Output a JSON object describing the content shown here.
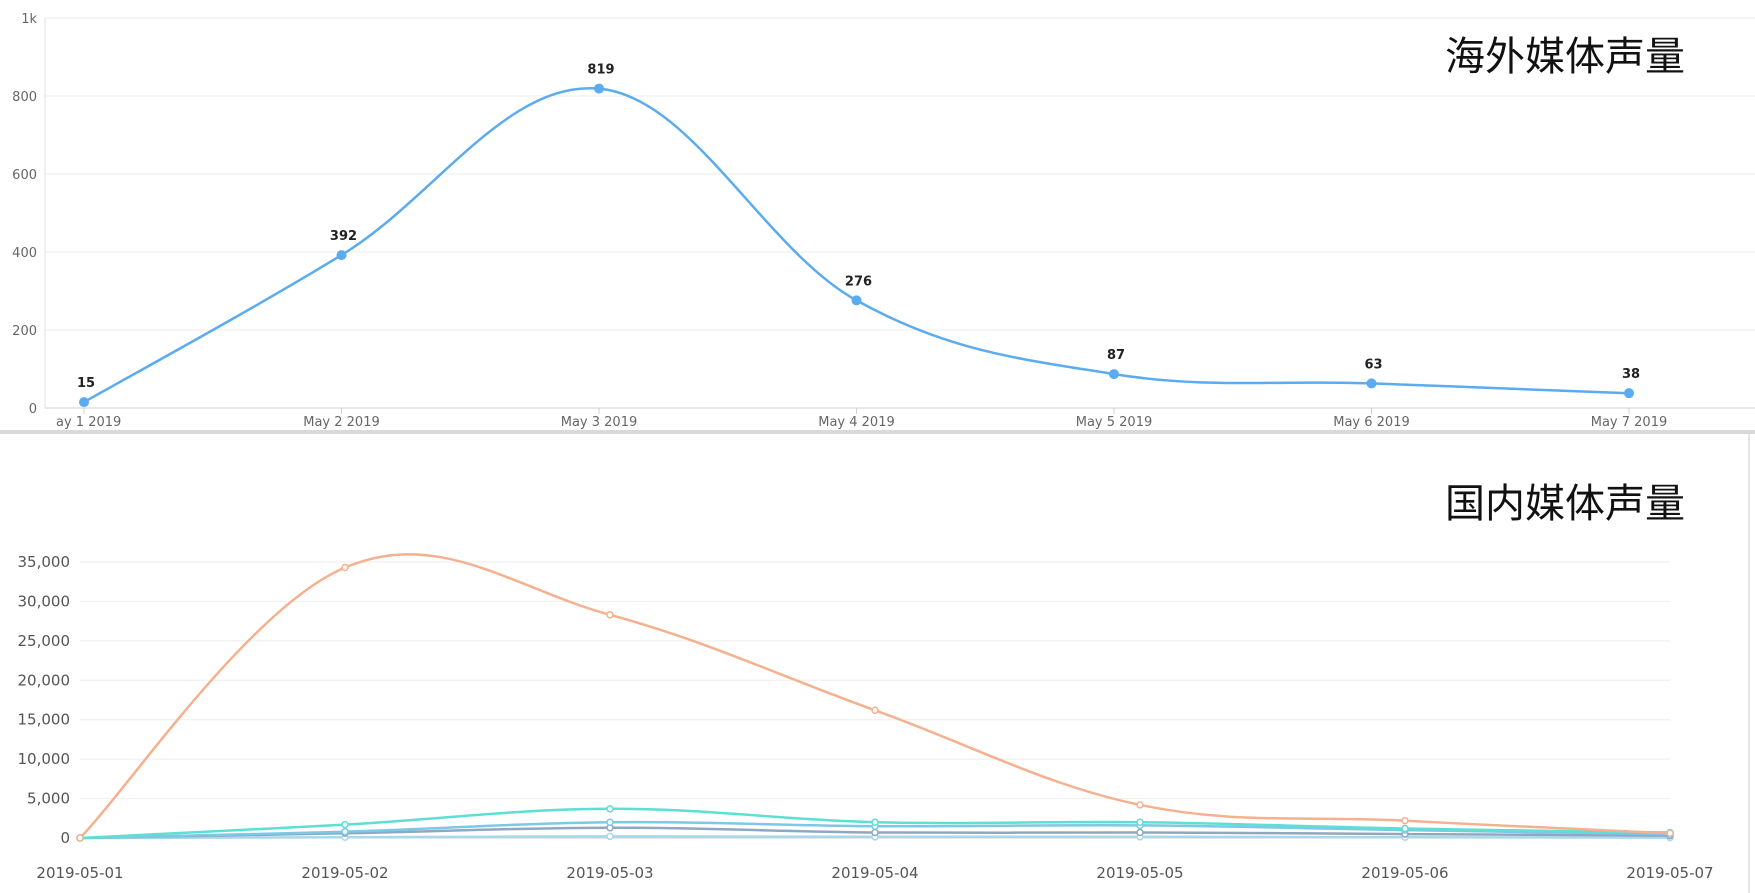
{
  "chart_data": [
    {
      "type": "line",
      "title": "海外媒体声量",
      "xlabel": "",
      "ylabel": "",
      "categories": [
        "ay 1 2019",
        "May 2 2019",
        "May 3 2019",
        "May 4 2019",
        "May 5 2019",
        "May 6 2019",
        "May 7 2019"
      ],
      "values": [
        15,
        392,
        819,
        276,
        87,
        63,
        38
      ],
      "data_labels": [
        "15",
        "392",
        "819",
        "276",
        "87",
        "63",
        "38"
      ],
      "ylim": [
        0,
        1000
      ],
      "yticks": [
        0,
        200,
        400,
        600,
        800,
        1000
      ],
      "ytick_labels": [
        "0",
        "200",
        "400",
        "600",
        "800",
        "1k"
      ],
      "grid": true,
      "color": "#5aabef"
    },
    {
      "type": "line",
      "title": "国内媒体声量",
      "xlabel": "",
      "ylabel": "",
      "categories": [
        "2019-05-01",
        "2019-05-02",
        "2019-05-03",
        "2019-05-04",
        "2019-05-05",
        "2019-05-06",
        "2019-05-07"
      ],
      "ylim": [
        0,
        35000
      ],
      "yticks": [
        0,
        5000,
        10000,
        15000,
        20000,
        25000,
        30000,
        35000
      ],
      "ytick_labels": [
        "0",
        "5,000",
        "10,000",
        "15,000",
        "20,000",
        "25,000",
        "30,000",
        "35,000"
      ],
      "grid": true,
      "series": [
        {
          "color": "#f5b08f",
          "values": [
            0,
            34300,
            28300,
            16200,
            4200,
            2200,
            600
          ]
        },
        {
          "color": "#5ddfd3",
          "values": [
            0,
            1700,
            3700,
            2000,
            2000,
            1200,
            700
          ]
        },
        {
          "color": "#7cc8e8",
          "values": [
            0,
            800,
            2000,
            1500,
            1600,
            1000,
            500
          ]
        },
        {
          "color": "#8fa8bf",
          "values": [
            0,
            600,
            1300,
            700,
            700,
            500,
            300
          ]
        },
        {
          "color": "#a8d8ea",
          "values": [
            0,
            100,
            200,
            150,
            150,
            100,
            50
          ]
        }
      ]
    }
  ]
}
